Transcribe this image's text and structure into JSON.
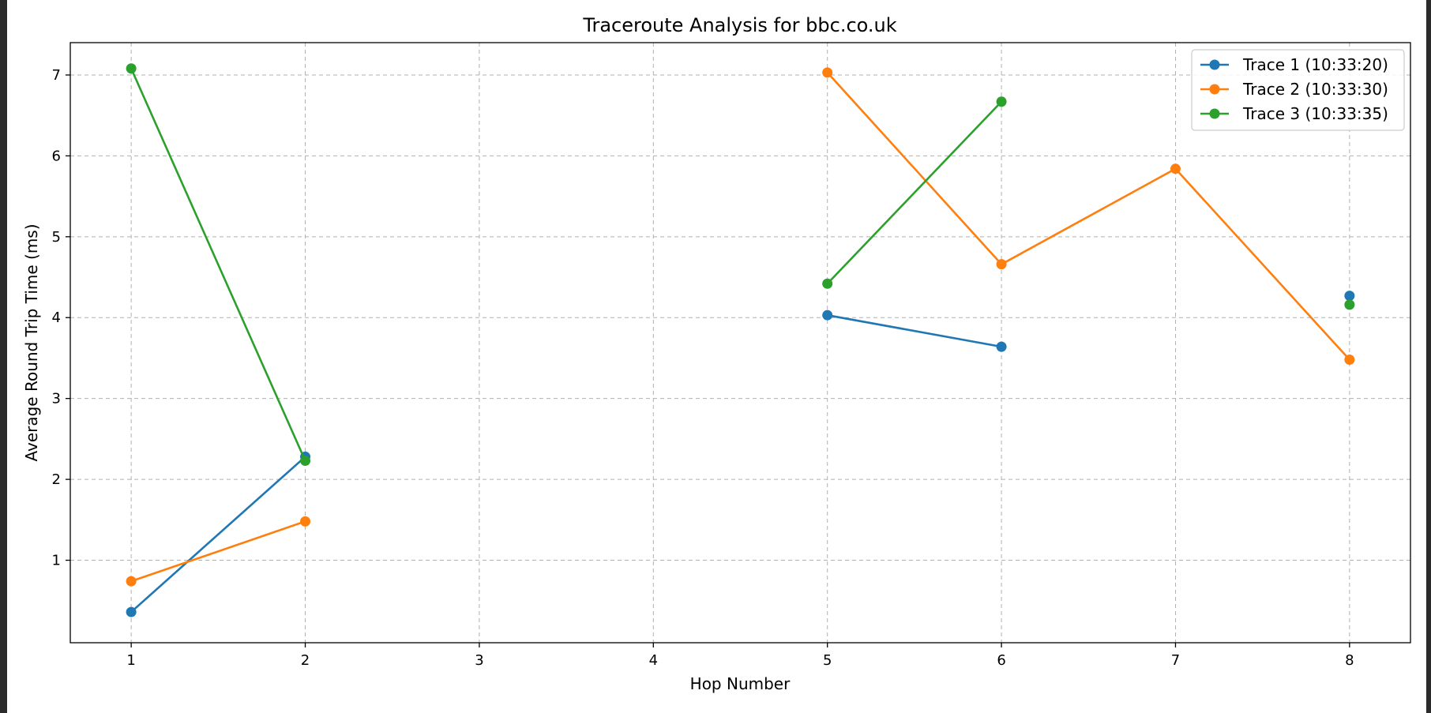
{
  "colors": {
    "trace1": "#1f77b4",
    "trace2": "#ff7f0e",
    "trace3": "#2ca02c"
  },
  "chart_data": {
    "type": "line",
    "title": "Traceroute Analysis for bbc.co.uk",
    "xlabel": "Hop Number",
    "ylabel": "Average Round Trip Time (ms)",
    "xlim": [
      0.65,
      8.35
    ],
    "ylim": [
      -0.02,
      7.4
    ],
    "xticks": [
      "1",
      "2",
      "3",
      "4",
      "5",
      "6",
      "7",
      "8"
    ],
    "yticks": [
      "1",
      "2",
      "3",
      "4",
      "5",
      "6",
      "7"
    ],
    "grid": true,
    "legend_position": "upper right",
    "series": [
      {
        "name": "Trace 1 (10:33:20)",
        "color": "#1f77b4",
        "segments": [
          [
            [
              1,
              0.36
            ],
            [
              2,
              2.28
            ]
          ],
          [
            [
              5,
              4.03
            ],
            [
              6,
              3.64
            ]
          ],
          [
            [
              8,
              4.27
            ]
          ]
        ]
      },
      {
        "name": "Trace 2 (10:33:30)",
        "color": "#ff7f0e",
        "segments": [
          [
            [
              1,
              0.74
            ],
            [
              2,
              1.48
            ]
          ],
          [
            [
              5,
              7.03
            ],
            [
              6,
              4.66
            ],
            [
              7,
              5.84
            ],
            [
              8,
              3.48
            ]
          ]
        ]
      },
      {
        "name": "Trace 3 (10:33:35)",
        "color": "#2ca02c",
        "segments": [
          [
            [
              1,
              7.08
            ],
            [
              2,
              2.23
            ]
          ],
          [
            [
              5,
              4.42
            ],
            [
              6,
              6.67
            ]
          ],
          [
            [
              8,
              4.16
            ]
          ]
        ]
      }
    ]
  }
}
